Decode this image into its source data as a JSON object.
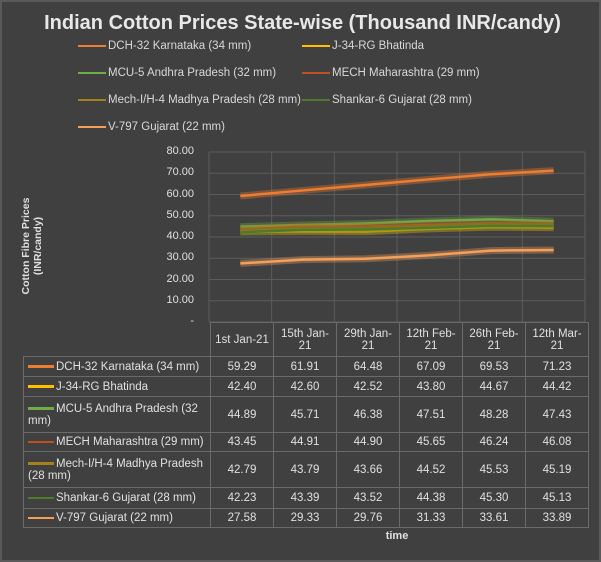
{
  "chart_data": {
    "type": "line",
    "title": "Indian Cotton Prices State-wise (Thousand INR/candy)",
    "ylabel": "Cotton Fibre Prices (INR/candy)",
    "xlabel": "time",
    "ylim": [
      0,
      80
    ],
    "yticks": [
      "-",
      "10.00",
      "20.00",
      "30.00",
      "40.00",
      "50.00",
      "60.00",
      "70.00",
      "80.00"
    ],
    "grid": true,
    "legend": "top",
    "categories": [
      "1st  Jan-21",
      "15th Jan-21",
      "29th Jan-21",
      "12th Feb-21",
      "26th Feb-21",
      "12th Mar-21"
    ],
    "series": [
      {
        "name": "DCH-32 Karnataka (34 mm)",
        "color": "#ed7d31",
        "values": [
          59.29,
          61.91,
          64.48,
          67.09,
          69.53,
          71.23
        ]
      },
      {
        "name": "J-34-RG Bhatinda",
        "color": "#ffc000",
        "values": [
          42.4,
          42.6,
          42.52,
          43.8,
          44.67,
          44.42
        ]
      },
      {
        "name": "MCU-5 Andhra Pradesh (32 mm)",
        "color": "#70ad47",
        "values": [
          44.89,
          45.71,
          46.38,
          47.51,
          48.28,
          47.43
        ]
      },
      {
        "name": "MECH Maharashtra (29 mm)",
        "color": "#c0501f",
        "values": [
          43.45,
          44.91,
          44.9,
          45.65,
          46.24,
          46.08
        ]
      },
      {
        "name": "Mech-I/H-4 Madhya Pradesh (28 mm)",
        "color": "#a5811c",
        "values": [
          42.79,
          43.79,
          43.66,
          44.52,
          45.53,
          45.19
        ]
      },
      {
        "name": "Shankar-6 Gujarat (28 mm)",
        "color": "#4e7a2c",
        "values": [
          42.23,
          43.39,
          43.52,
          44.38,
          45.3,
          45.13
        ]
      },
      {
        "name": "V-797 Gujarat (22 mm)",
        "color": "#f4a05a",
        "values": [
          27.58,
          29.33,
          29.76,
          31.33,
          33.61,
          33.89
        ]
      }
    ]
  }
}
